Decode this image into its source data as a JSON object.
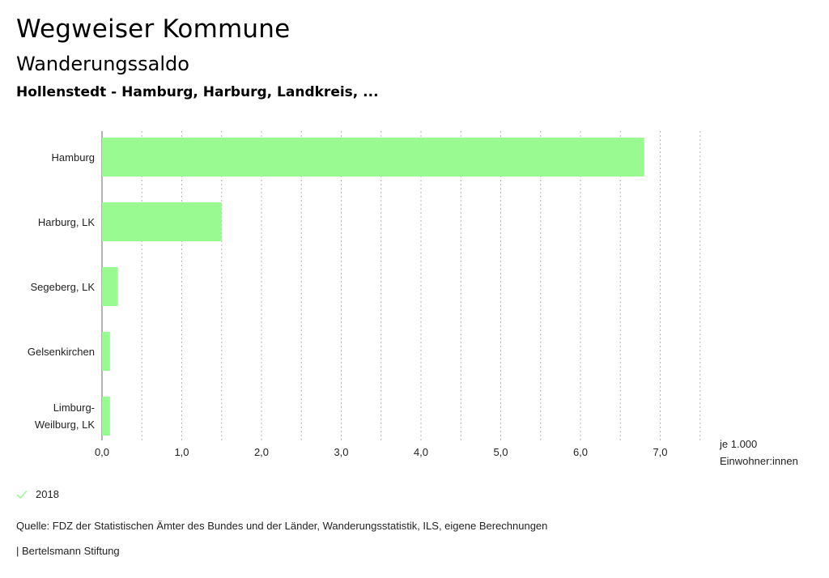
{
  "header": {
    "title": "Wegweiser Kommune",
    "subtitle": "Wanderungssaldo",
    "region": "Hollenstedt - Hamburg, Harburg, Landkreis, ..."
  },
  "chart_data": {
    "type": "bar",
    "orientation": "horizontal",
    "categories": [
      "Hamburg",
      "Harburg, LK",
      "Segeberg, LK",
      "Gelsenkirchen",
      "Limburg-Weilburg, LK"
    ],
    "series": [
      {
        "name": "2018",
        "values": [
          6.8,
          1.5,
          0.2,
          0.1,
          0.1
        ],
        "color": "#98fa90"
      }
    ],
    "xticks": [
      "0,0",
      "1,0",
      "2,0",
      "3,0",
      "4,0",
      "5,0",
      "6,0",
      "7,0"
    ],
    "xlim": [
      0,
      7.5
    ],
    "grid": true,
    "legend_position": "bottom-left"
  },
  "axis": {
    "unit_line1": "je 1.000",
    "unit_line2": "Einwohner:innen"
  },
  "legend": {
    "label": "2018",
    "icon": "check-icon",
    "color": "#98fa90"
  },
  "footer": {
    "source": "Quelle: FDZ der Statistischen Ämter des Bundes und der Länder, Wanderungsstatistik, ILS, eigene Berechnungen",
    "credit": "| Bertelsmann Stiftung"
  }
}
